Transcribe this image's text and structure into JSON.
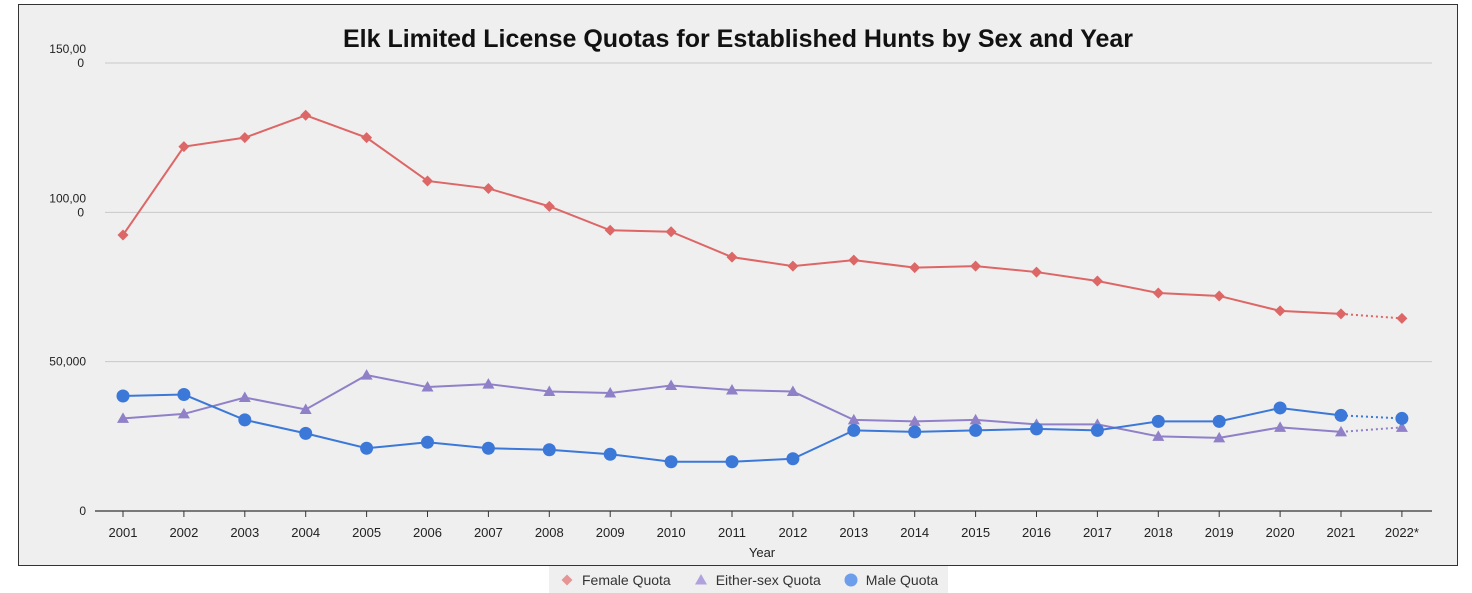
{
  "chart_data": {
    "type": "line",
    "title": "Elk Limited License Quotas for Established Hunts by Sex and Year",
    "xlabel": "Year",
    "ylabel": "",
    "categories": [
      "2001",
      "2002",
      "2003",
      "2004",
      "2005",
      "2006",
      "2007",
      "2008",
      "2009",
      "2010",
      "2011",
      "2012",
      "2013",
      "2014",
      "2015",
      "2016",
      "2017",
      "2018",
      "2019",
      "2020",
      "2021",
      "2022*"
    ],
    "y_ticks": [
      "0",
      "50,000",
      "100,00\n0",
      "150,00\n0"
    ],
    "y_tick_values": [
      0,
      50000,
      100000,
      150000
    ],
    "ylim": [
      0,
      150000
    ],
    "grid": true,
    "legend_position": "bottom",
    "projected_last_point_dotted": true,
    "series": [
      {
        "name": "Female Quota",
        "color": "#dd6666",
        "marker": "diamond",
        "values": [
          92400,
          122000,
          125000,
          132500,
          125000,
          110500,
          108000,
          102000,
          94000,
          93500,
          85000,
          82000,
          84000,
          81500,
          82000,
          80000,
          77000,
          73000,
          72000,
          67000,
          66000,
          64500
        ]
      },
      {
        "name": "Either-sex Quota",
        "color": "#9080c8",
        "marker": "triangle",
        "values": [
          31000,
          32500,
          38000,
          34000,
          45500,
          41500,
          42500,
          40000,
          39500,
          42000,
          40500,
          40000,
          30500,
          30000,
          30500,
          29000,
          29000,
          25000,
          24500,
          28000,
          26500,
          28000
        ]
      },
      {
        "name": "Male Quota",
        "color": "#3b78d8",
        "marker": "circle",
        "values": [
          38500,
          39000,
          30500,
          26000,
          21000,
          23000,
          21000,
          20500,
          19000,
          16500,
          16500,
          17500,
          27000,
          26500,
          27000,
          27500,
          27000,
          30000,
          30000,
          34500,
          32000,
          31000
        ]
      }
    ]
  }
}
